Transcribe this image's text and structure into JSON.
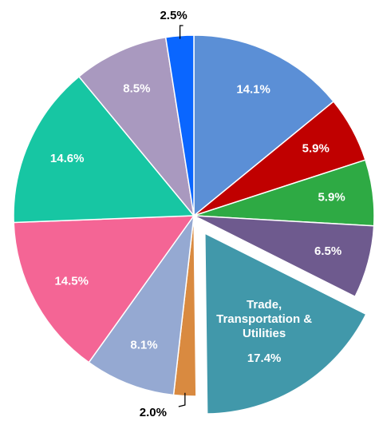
{
  "chart_data": {
    "type": "pie",
    "categories": [
      null,
      null,
      null,
      null,
      "Trade, Transportation & Utilities",
      null,
      null,
      null,
      null,
      null,
      null
    ],
    "values": [
      14.1,
      5.9,
      5.9,
      6.5,
      17.4,
      2.0,
      8.1,
      14.5,
      14.6,
      8.5,
      2.5
    ],
    "value_labels": [
      "14.1%",
      "5.9%",
      "5.9%",
      "6.5%",
      "17.4%",
      "2.0%",
      "8.1%",
      "14.5%",
      "14.6%",
      "8.5%",
      "2.5%"
    ],
    "colors": [
      "#5b8fd6",
      "#c00000",
      "#2eaa44",
      "#6e5a8e",
      "#4198aa",
      "#d98a40",
      "#95a9d2",
      "#f46595",
      "#17c6a3",
      "#a999bf",
      "#0a66ff"
    ],
    "exploded": [
      4
    ]
  }
}
